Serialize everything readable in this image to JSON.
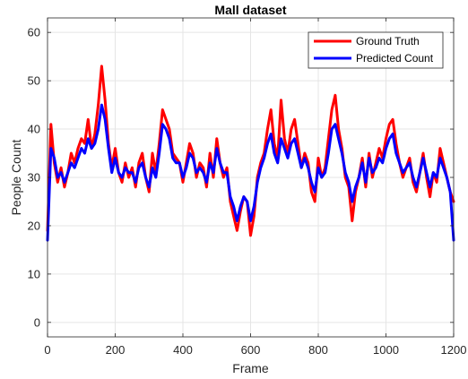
{
  "chart_data": {
    "type": "line",
    "title": "Mall dataset",
    "xlabel": "Frame",
    "ylabel": "People Count",
    "xlim": [
      0,
      1200
    ],
    "ylim": [
      -3,
      63
    ],
    "xticks": [
      "0",
      "200",
      "400",
      "600",
      "800",
      "1000",
      "1200"
    ],
    "yticks": [
      "0",
      "10",
      "20",
      "30",
      "40",
      "50",
      "60"
    ],
    "grid": true,
    "legend_position": "top-right",
    "series": [
      {
        "name": "Ground Truth",
        "color": "#ff0000",
        "x": [
          0,
          10,
          20,
          30,
          40,
          50,
          60,
          70,
          80,
          90,
          100,
          110,
          120,
          130,
          140,
          150,
          160,
          170,
          180,
          190,
          200,
          210,
          220,
          230,
          240,
          250,
          260,
          270,
          280,
          290,
          300,
          310,
          320,
          330,
          340,
          350,
          360,
          370,
          380,
          390,
          400,
          410,
          420,
          430,
          440,
          450,
          460,
          470,
          480,
          490,
          500,
          510,
          520,
          530,
          540,
          550,
          560,
          570,
          580,
          590,
          600,
          610,
          620,
          630,
          640,
          650,
          660,
          670,
          680,
          690,
          700,
          710,
          720,
          730,
          740,
          750,
          760,
          770,
          780,
          790,
          800,
          810,
          820,
          830,
          840,
          850,
          860,
          870,
          880,
          890,
          900,
          910,
          920,
          930,
          940,
          950,
          960,
          970,
          980,
          990,
          1000,
          1010,
          1020,
          1030,
          1040,
          1050,
          1060,
          1070,
          1080,
          1090,
          1100,
          1110,
          1120,
          1130,
          1140,
          1150,
          1160,
          1170,
          1180,
          1190,
          1200
        ],
        "values": [
          19,
          41,
          33,
          29,
          32,
          28,
          31,
          35,
          33,
          36,
          38,
          37,
          42,
          36,
          39,
          45,
          53,
          46,
          37,
          32,
          36,
          31,
          29,
          33,
          30,
          32,
          28,
          33,
          35,
          30,
          27,
          35,
          31,
          37,
          44,
          42,
          40,
          35,
          34,
          33,
          29,
          33,
          37,
          35,
          30,
          33,
          32,
          28,
          35,
          30,
          38,
          33,
          30,
          32,
          25,
          22,
          19,
          23,
          26,
          25,
          18,
          22,
          30,
          33,
          35,
          40,
          44,
          37,
          34,
          46,
          38,
          35,
          40,
          42,
          37,
          32,
          35,
          33,
          27,
          25,
          34,
          30,
          32,
          38,
          44,
          47,
          40,
          36,
          30,
          28,
          21,
          27,
          30,
          34,
          28,
          35,
          30,
          33,
          36,
          34,
          38,
          41,
          42,
          37,
          33,
          30,
          32,
          34,
          29,
          27,
          31,
          35,
          30,
          26,
          31,
          29,
          36,
          33,
          30,
          27,
          25
        ]
      },
      {
        "name": "Predicted Count",
        "color": "#0000ff",
        "x": [
          0,
          10,
          20,
          30,
          40,
          50,
          60,
          70,
          80,
          90,
          100,
          110,
          120,
          130,
          140,
          150,
          160,
          170,
          180,
          190,
          200,
          210,
          220,
          230,
          240,
          250,
          260,
          270,
          280,
          290,
          300,
          310,
          320,
          330,
          340,
          350,
          360,
          370,
          380,
          390,
          400,
          410,
          420,
          430,
          440,
          450,
          460,
          470,
          480,
          490,
          500,
          510,
          520,
          530,
          540,
          550,
          560,
          570,
          580,
          590,
          600,
          610,
          620,
          630,
          640,
          650,
          660,
          670,
          680,
          690,
          700,
          710,
          720,
          730,
          740,
          750,
          760,
          770,
          780,
          790,
          800,
          810,
          820,
          830,
          840,
          850,
          860,
          870,
          880,
          890,
          900,
          910,
          920,
          930,
          940,
          950,
          960,
          970,
          980,
          990,
          1000,
          1010,
          1020,
          1030,
          1040,
          1050,
          1060,
          1070,
          1080,
          1090,
          1100,
          1110,
          1120,
          1130,
          1140,
          1150,
          1160,
          1170,
          1180,
          1190,
          1200
        ],
        "values": [
          17,
          36,
          34,
          30,
          31,
          29,
          31,
          33,
          32,
          34,
          36,
          35,
          38,
          36,
          37,
          40,
          45,
          42,
          36,
          31,
          34,
          31,
          30,
          32,
          31,
          31,
          29,
          32,
          33,
          30,
          28,
          32,
          30,
          35,
          41,
          40,
          38,
          34,
          33,
          33,
          30,
          32,
          35,
          34,
          31,
          32,
          31,
          29,
          33,
          31,
          36,
          33,
          31,
          31,
          26,
          24,
          21,
          24,
          26,
          25,
          21,
          24,
          29,
          32,
          34,
          37,
          39,
          35,
          33,
          38,
          36,
          34,
          37,
          38,
          35,
          32,
          34,
          32,
          29,
          27,
          32,
          30,
          31,
          35,
          40,
          41,
          38,
          35,
          31,
          29,
          25,
          28,
          30,
          33,
          29,
          34,
          31,
          32,
          34,
          33,
          36,
          38,
          39,
          35,
          33,
          31,
          32,
          33,
          30,
          28,
          31,
          34,
          31,
          28,
          31,
          30,
          34,
          32,
          30,
          27,
          17
        ]
      }
    ]
  }
}
